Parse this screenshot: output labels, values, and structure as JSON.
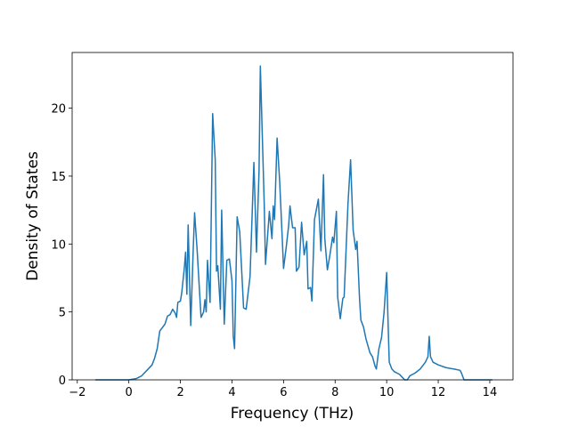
{
  "chart_data": {
    "type": "line",
    "xlabel": "Frequency (THz)",
    "ylabel": "Density of States",
    "color": "#1f77b4",
    "x": [
      -1.3,
      0,
      0.3,
      0.5,
      0.7,
      0.9,
      1.0,
      1.1,
      1.2,
      1.4,
      1.5,
      1.6,
      1.7,
      1.8,
      1.85,
      1.9,
      2.0,
      2.05,
      2.15,
      2.2,
      2.25,
      2.3,
      2.4,
      2.5,
      2.55,
      2.65,
      2.8,
      2.9,
      2.95,
      3.0,
      3.05,
      3.15,
      3.25,
      3.35,
      3.4,
      3.45,
      3.55,
      3.6,
      3.7,
      3.8,
      3.9,
      4.0,
      4.05,
      4.1,
      4.2,
      4.3,
      4.45,
      4.55,
      4.7,
      4.85,
      4.95,
      5.05,
      5.1,
      5.25,
      5.3,
      5.45,
      5.55,
      5.6,
      5.65,
      5.75,
      5.85,
      5.95,
      6.0,
      6.1,
      6.2,
      6.25,
      6.35,
      6.45,
      6.5,
      6.6,
      6.7,
      6.8,
      6.9,
      6.95,
      7.05,
      7.1,
      7.2,
      7.3,
      7.35,
      7.45,
      7.55,
      7.6,
      7.7,
      7.8,
      7.9,
      7.95,
      8.05,
      8.1,
      8.2,
      8.3,
      8.35,
      8.5,
      8.6,
      8.7,
      8.8,
      8.85,
      8.95,
      9.0,
      9.1,
      9.2,
      9.35,
      9.45,
      9.55,
      9.6,
      9.7,
      9.8,
      9.9,
      10.0,
      10.05,
      10.1,
      10.2,
      10.3,
      10.5,
      10.6,
      10.7,
      10.8,
      10.9,
      11.1,
      11.3,
      11.5,
      11.6,
      11.65,
      11.7,
      11.8,
      12.0,
      12.3,
      12.6,
      12.85,
      12.9,
      13.0,
      14.1
    ],
    "values": [
      0,
      0,
      0.1,
      0.3,
      0.7,
      1.1,
      1.6,
      2.3,
      3.6,
      4.1,
      4.7,
      4.8,
      5.2,
      4.9,
      4.6,
      5.7,
      5.8,
      6.4,
      8.2,
      9.4,
      6.3,
      11.4,
      4.0,
      9.8,
      12.3,
      9.5,
      4.6,
      5.0,
      5.9,
      5.0,
      8.8,
      5.7,
      19.6,
      16.2,
      8.0,
      8.4,
      5.2,
      12.5,
      4.1,
      8.8,
      8.9,
      7.3,
      3.2,
      2.3,
      12.0,
      10.9,
      5.3,
      5.2,
      7.6,
      16.0,
      9.4,
      15.4,
      23.1,
      13.0,
      8.5,
      12.4,
      10.4,
      12.8,
      11.8,
      17.8,
      14.6,
      10.4,
      8.2,
      9.7,
      11.4,
      12.8,
      11.2,
      11.2,
      8.0,
      8.3,
      11.6,
      9.2,
      10.2,
      6.7,
      6.8,
      5.8,
      11.8,
      12.8,
      13.3,
      9.5,
      15.1,
      10.4,
      8.1,
      9.2,
      10.5,
      10.1,
      12.4,
      6.1,
      4.5,
      6.0,
      6.1,
      13.0,
      16.2,
      11.0,
      9.6,
      10.2,
      5.9,
      4.4,
      3.9,
      3.0,
      2.0,
      1.7,
      1.0,
      0.8,
      2.3,
      3.1,
      5.0,
      7.9,
      4.5,
      1.3,
      0.8,
      0.6,
      0.4,
      0.2,
      0,
      0,
      0.3,
      0.5,
      0.8,
      1.3,
      1.7,
      3.2,
      1.7,
      1.3,
      1.1,
      0.9,
      0.8,
      0.7,
      0.5,
      0,
      0
    ],
    "xlim": [
      -2.2,
      14.9
    ],
    "ylim": [
      0,
      24.1
    ],
    "xticks": [
      {
        "value": -2,
        "label": "−2"
      },
      0,
      2,
      4,
      6,
      8,
      10,
      12,
      14
    ],
    "yticks": [
      0,
      5,
      10,
      15,
      20
    ]
  }
}
